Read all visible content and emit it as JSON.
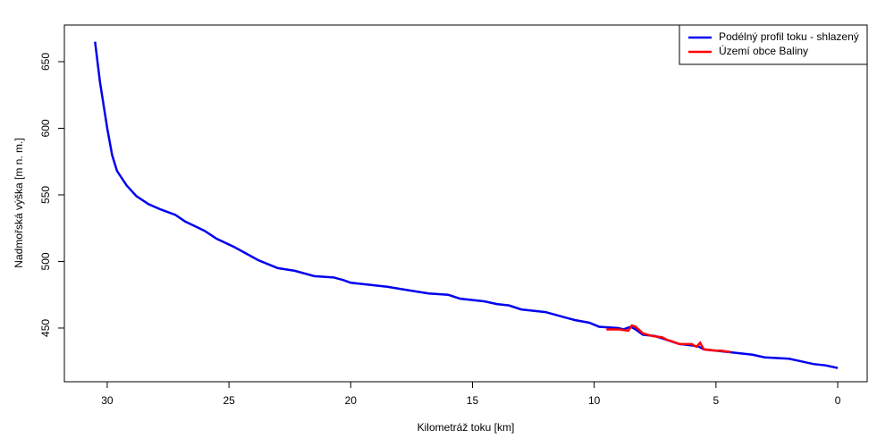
{
  "chart_data": {
    "type": "line",
    "x_label": "Kilometráž toku [km]",
    "y_label": "Nadmořská výška [m n. m.]",
    "xlim": [
      31.76,
      -1.21
    ],
    "ylim": [
      409.7,
      677.5
    ],
    "xticks": [
      30,
      25,
      20,
      15,
      10,
      5,
      0
    ],
    "yticks": [
      450,
      500,
      550,
      600,
      650
    ],
    "legend": "top-right",
    "series": [
      {
        "name": "Podélný profil toku  - shlazený",
        "color": "#0000ee",
        "x": [
          30.5,
          30.3,
          30.0,
          29.8,
          29.6,
          29.2,
          28.8,
          28.3,
          27.8,
          27.2,
          26.8,
          26.0,
          25.5,
          24.8,
          24.3,
          23.8,
          23.4,
          23.0,
          22.3,
          21.5,
          20.7,
          20.3,
          20.0,
          19.5,
          18.5,
          17.5,
          16.8,
          16.0,
          15.5,
          14.5,
          14.0,
          13.5,
          13.0,
          12.0,
          11.2,
          10.8,
          10.2,
          9.8,
          9.0,
          8.8,
          8.5,
          8.3,
          8.0,
          7.5,
          7.0,
          6.5,
          6.0,
          5.7,
          5.5,
          5.0,
          4.5,
          4.0,
          3.5,
          3.0,
          2.0,
          1.5,
          1.0,
          0.5,
          0
        ],
        "values": [
          665,
          635,
          600,
          580,
          568,
          557,
          549,
          543,
          539,
          535,
          530,
          523,
          517,
          511,
          506,
          501,
          498,
          495,
          493,
          489,
          488,
          486,
          484,
          483,
          481,
          478,
          476,
          475,
          472,
          470,
          468,
          467,
          464,
          462,
          458,
          456,
          454,
          451,
          450,
          449,
          451,
          449,
          445,
          444,
          441,
          438,
          437,
          436,
          434,
          433,
          432,
          431,
          430,
          428,
          427,
          425,
          423,
          422,
          420
        ]
      },
      {
        "name": "Území obce Baliny",
        "color": "#ff0000",
        "x": [
          9.5,
          9.0,
          8.6,
          8.45,
          8.3,
          8.0,
          7.6,
          7.2,
          7.0,
          6.8,
          6.5,
          6.0,
          5.8,
          5.65,
          5.5,
          5.0,
          4.8,
          4.4
        ],
        "values": [
          449,
          449,
          448,
          452,
          451,
          446,
          444,
          443,
          441,
          440,
          438,
          438,
          436,
          439,
          434,
          433,
          433,
          432
        ]
      }
    ]
  }
}
